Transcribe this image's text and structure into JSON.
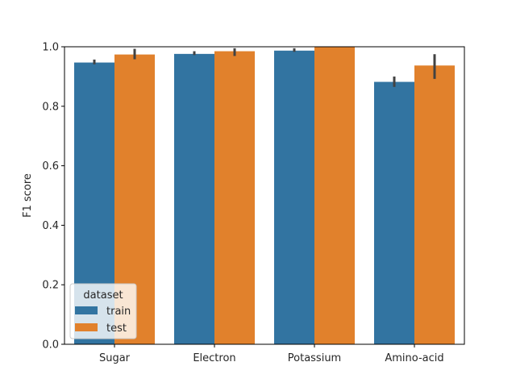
{
  "chart_data": {
    "type": "bar",
    "xlabel": "",
    "ylabel": "F1 score",
    "ylim": [
      0,
      1.0
    ],
    "yticks": [
      0.0,
      0.2,
      0.4,
      0.6,
      0.8,
      1.0
    ],
    "ytick_labels": [
      "0.0",
      "0.2",
      "0.4",
      "0.6",
      "0.8",
      "1.0"
    ],
    "categories": [
      "Sugar",
      "Electron",
      "Potassium",
      "Amino-acid"
    ],
    "series": [
      {
        "name": "train",
        "color": "#3274a1",
        "values": [
          0.947,
          0.976,
          0.987,
          0.882
        ],
        "err_low": [
          0.941,
          0.972,
          0.983,
          0.865
        ],
        "err_high": [
          0.957,
          0.985,
          0.995,
          0.9
        ]
      },
      {
        "name": "test",
        "color": "#e1812c",
        "values": [
          0.974,
          0.985,
          1.0,
          0.937
        ],
        "err_low": [
          0.958,
          0.969,
          1.0,
          0.892
        ],
        "err_high": [
          0.993,
          0.995,
          1.0,
          0.975
        ]
      }
    ],
    "legend": {
      "title": "dataset",
      "position": "lower-left"
    },
    "grid": false,
    "error_bar_color": "#424242"
  }
}
